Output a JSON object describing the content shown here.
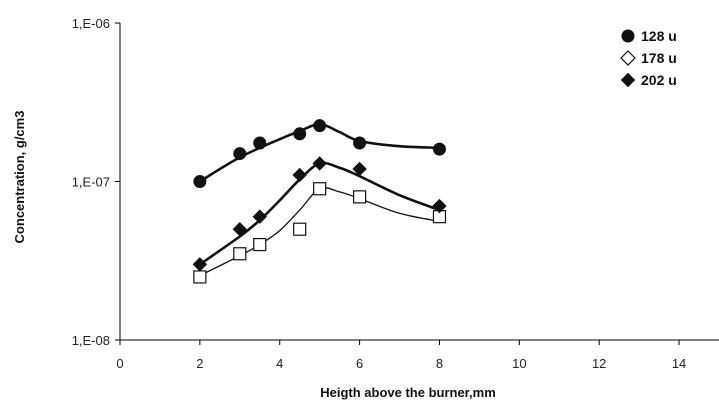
{
  "chart_data": {
    "type": "scatter",
    "title": "",
    "xlabel": "Heigth above the burner,mm",
    "ylabel": "Concentration, g/cm3",
    "xlim": [
      0,
      15
    ],
    "ylim": [
      1e-08,
      1e-06
    ],
    "y_scale": "log",
    "x_ticks": [
      0,
      2,
      4,
      6,
      8,
      10,
      12,
      14
    ],
    "x_tick_labels": [
      "0",
      "2",
      "4",
      "6",
      "8",
      "10",
      "12",
      "14"
    ],
    "y_ticks": [
      1e-08,
      1e-07,
      1e-06
    ],
    "y_tick_labels": [
      "1,E-08",
      "1,E-07",
      "1,E-06"
    ],
    "grid": false,
    "legend_position": "top-right",
    "series": [
      {
        "name": "128 u",
        "marker": "filled-circle",
        "color": "#111111",
        "points": [
          [
            2,
            1e-07
          ],
          [
            3,
            1.5e-07
          ],
          [
            3.5,
            1.75e-07
          ],
          [
            4.5,
            2e-07
          ],
          [
            5,
            2.25e-07
          ],
          [
            6,
            1.75e-07
          ],
          [
            8,
            1.6e-07
          ]
        ],
        "fit": [
          [
            2,
            1e-07
          ],
          [
            3,
            1.42e-07
          ],
          [
            4,
            1.85e-07
          ],
          [
            4.5,
            2.08e-07
          ],
          [
            5,
            2.3e-07
          ],
          [
            5.5,
            2.05e-07
          ],
          [
            6,
            1.8e-07
          ],
          [
            7,
            1.67e-07
          ],
          [
            8,
            1.63e-07
          ]
        ]
      },
      {
        "name": "178 u",
        "marker": "open-square",
        "color": "#111111",
        "points": [
          [
            2,
            2.5e-08
          ],
          [
            3,
            3.5e-08
          ],
          [
            3.5,
            4e-08
          ],
          [
            4.5,
            5e-08
          ],
          [
            5,
            9e-08
          ],
          [
            6,
            8e-08
          ],
          [
            8,
            6e-08
          ]
        ],
        "fit": [
          [
            2,
            2.55e-08
          ],
          [
            3,
            3.4e-08
          ],
          [
            3.5,
            4e-08
          ],
          [
            4,
            4.9e-08
          ],
          [
            4.5,
            6.6e-08
          ],
          [
            5,
            9e-08
          ],
          [
            5.5,
            8.6e-08
          ],
          [
            6,
            7.8e-08
          ],
          [
            7,
            6.3e-08
          ],
          [
            8,
            5.6e-08
          ]
        ]
      },
      {
        "name": "202 u",
        "marker": "filled-diamond",
        "color": "#111111",
        "points": [
          [
            2,
            3e-08
          ],
          [
            3,
            5e-08
          ],
          [
            3.5,
            6e-08
          ],
          [
            4.5,
            1.1e-07
          ],
          [
            5,
            1.3e-07
          ],
          [
            6,
            1.2e-07
          ],
          [
            8,
            7e-08
          ]
        ],
        "fit": [
          [
            2,
            3e-08
          ],
          [
            3,
            4.5e-08
          ],
          [
            3.5,
            5.7e-08
          ],
          [
            4,
            7.6e-08
          ],
          [
            4.5,
            1.03e-07
          ],
          [
            5,
            1.3e-07
          ],
          [
            5.5,
            1.22e-07
          ],
          [
            6,
            1.08e-07
          ],
          [
            7,
            8.2e-08
          ],
          [
            8,
            6.6e-08
          ]
        ]
      }
    ]
  }
}
